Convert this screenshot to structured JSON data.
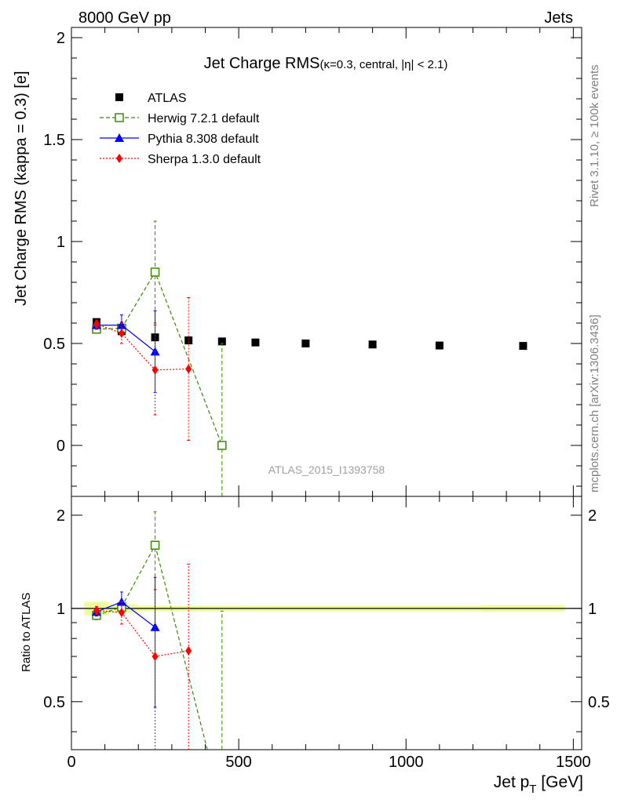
{
  "header": {
    "left": "8000 GeV pp",
    "right": "Jets"
  },
  "side": {
    "top": "Rivet 3.1.10, ≥ 100k events",
    "bottom": "mcplots.cern.ch [arXiv:1306.3436]"
  },
  "chart_data": [
    {
      "type": "scatter",
      "title_main": "Jet Charge RMS",
      "title_sub": "(κ=0.3, central, |η| < 2.1)",
      "ylabel": "Jet Charge RMS (kappa = 0.3) [e]",
      "analysis_label": "ATLAS_2015_I1393758",
      "xlim": [
        0,
        1525
      ],
      "ylim": [
        -0.25,
        2.05
      ],
      "x_ticks": [
        0,
        500,
        1000,
        1500
      ],
      "y_ticks": [
        0,
        0.5,
        1,
        1.5,
        2
      ],
      "y_tick_labels": [
        "0",
        "0.5",
        "1",
        "1.5",
        "2"
      ],
      "legend_position": "top-left",
      "series": [
        {
          "name": "ATLAS",
          "color": "#000000",
          "marker": "square-filled",
          "line": "none",
          "x": [
            75,
            150,
            250,
            350,
            450,
            550,
            700,
            900,
            1100,
            1350
          ],
          "y": [
            0.605,
            0.56,
            0.53,
            0.515,
            0.51,
            0.505,
            0.5,
            0.495,
            0.49,
            0.488
          ]
        },
        {
          "name": "Herwig 7.2.1 default",
          "color": "#3a8a00",
          "marker": "square-open",
          "line": "dashed",
          "x": [
            75,
            150,
            250,
            450
          ],
          "y": [
            0.57,
            0.575,
            0.85,
            0.0
          ],
          "err": [
            0.02,
            0.03,
            0.25,
            0.5
          ]
        },
        {
          "name": "Pythia 8.308 default",
          "color": "#0000ff",
          "marker": "triangle-filled",
          "line": "solid",
          "x": [
            75,
            150,
            250
          ],
          "y": [
            0.59,
            0.59,
            0.46
          ],
          "err": [
            0.02,
            0.05,
            0.2
          ]
        },
        {
          "name": "Sherpa 1.3.0 default",
          "color": "#ff0000",
          "marker": "diamond-filled",
          "line": "dotted",
          "x": [
            75,
            150,
            250,
            350
          ],
          "y": [
            0.595,
            0.55,
            0.37,
            0.375
          ],
          "err": [
            0.02,
            0.05,
            0.22,
            0.35
          ]
        }
      ]
    },
    {
      "type": "scatter",
      "ylabel": "Ratio to ATLAS",
      "xlabel_main": "Jet p",
      "xlabel_sub": "T",
      "xlabel_unit": " [GeV]",
      "xlim": [
        0,
        1525
      ],
      "ylim": [
        0.35,
        2.3
      ],
      "x_ticks": [
        0,
        500,
        1000,
        1500
      ],
      "x_tick_labels": [
        "0",
        "500",
        "1000",
        "1500"
      ],
      "y_ticks": [
        0.5,
        1,
        2
      ],
      "y_tick_labels": [
        "0.5",
        "1",
        "2"
      ],
      "y_scale": "log",
      "band": {
        "x": [
          75,
          150,
          250,
          350,
          450,
          550,
          700,
          900,
          1100,
          1350
        ],
        "half_width": [
          0.05,
          0.03,
          0.02,
          0.02,
          0.02,
          0.02,
          0.02,
          0.02,
          0.02,
          0.025
        ]
      },
      "series": [
        {
          "name": "Herwig 7.2.1 default",
          "color": "#3a8a00",
          "marker": "square-open",
          "line": "dashed",
          "x": [
            75,
            150,
            250,
            450
          ],
          "y": [
            0.95,
            1.01,
            1.6,
            0.0
          ],
          "err": [
            0.03,
            0.05,
            0.45,
            0.98
          ]
        },
        {
          "name": "Pythia 8.308 default",
          "color": "#0000ff",
          "marker": "triangle-filled",
          "line": "solid",
          "x": [
            75,
            150,
            250
          ],
          "y": [
            0.975,
            1.05,
            0.87
          ],
          "err": [
            0.03,
            0.08,
            0.39
          ]
        },
        {
          "name": "Sherpa 1.3.0 default",
          "color": "#ff0000",
          "marker": "diamond-filled",
          "line": "dotted",
          "x": [
            75,
            150,
            250,
            350
          ],
          "y": [
            0.985,
            0.97,
            0.7,
            0.73
          ],
          "err": [
            0.03,
            0.08,
            0.45,
            0.66
          ]
        }
      ]
    }
  ]
}
